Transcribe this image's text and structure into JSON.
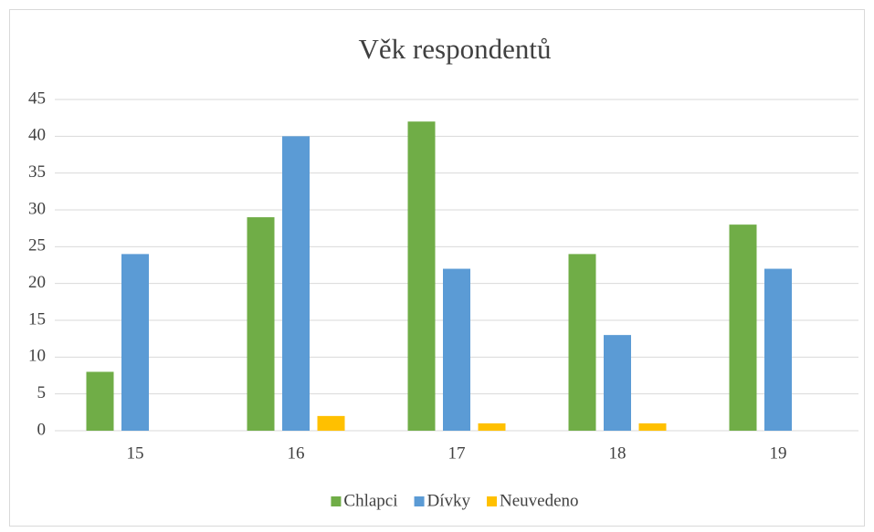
{
  "chart_data": {
    "type": "bar",
    "title": "Věk respondentů",
    "categories": [
      "15",
      "16",
      "17",
      "18",
      "19"
    ],
    "series": [
      {
        "name": "Chlapci",
        "color": "#70ad47",
        "values": [
          8,
          29,
          42,
          24,
          28
        ]
      },
      {
        "name": "Dívky",
        "color": "#5b9bd5",
        "values": [
          24,
          40,
          22,
          13,
          22
        ]
      },
      {
        "name": "Neuvedeno",
        "color": "#ffc000",
        "values": [
          0,
          2,
          1,
          1,
          0
        ]
      }
    ],
    "ylim": [
      0,
      45
    ],
    "yticks": [
      0,
      5,
      10,
      15,
      20,
      25,
      30,
      35,
      40,
      45
    ],
    "grid": true,
    "legend": "bottom"
  }
}
